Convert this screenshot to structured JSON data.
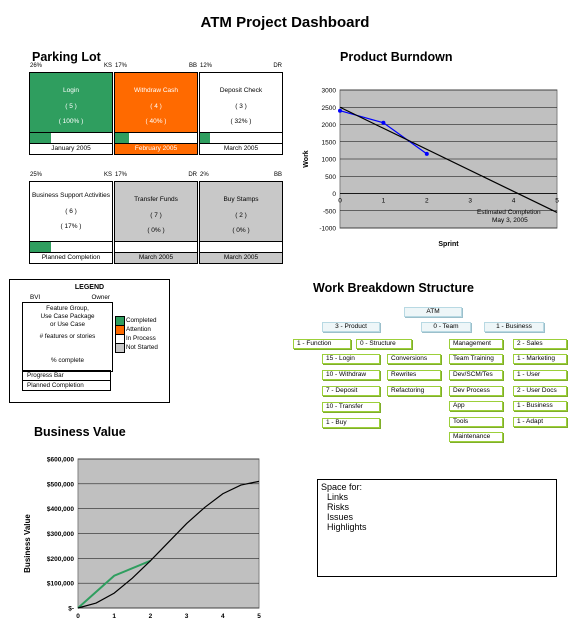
{
  "title": "ATM Project Dashboard",
  "parking_lot": {
    "heading": "Parking Lot",
    "cards": [
      {
        "pct_top": "26%",
        "owner": "KS",
        "name": "Login",
        "count": "( 5 )",
        "pct": "( 100% )",
        "foot": "January 2005",
        "progress": 0.26,
        "style": "green"
      },
      {
        "pct_top": "17%",
        "owner": "BB",
        "name": "Withdraw Cash",
        "count": "( 4 )",
        "pct": "( 40% )",
        "foot": "February 2005",
        "progress": 0.17,
        "style": "orange"
      },
      {
        "pct_top": "12%",
        "owner": "DR",
        "name": "Deposit Check",
        "count": "( 3 )",
        "pct": "( 32% )",
        "foot": "March 2005",
        "progress": 0.12,
        "style": "white"
      },
      {
        "pct_top": "25%",
        "owner": "KS",
        "name": "Business Support Activities",
        "count": "( 6 )",
        "pct": "( 17% )",
        "foot": "Planned Completion",
        "progress": 0.25,
        "style": "white"
      },
      {
        "pct_top": "17%",
        "owner": "DR",
        "name": "Transfer Funds",
        "count": "( 7 )",
        "pct": "( 0% )",
        "foot": "March 2005",
        "progress": 0.0,
        "style": "gray"
      },
      {
        "pct_top": "2%",
        "owner": "BB",
        "name": "Buy Stamps",
        "count": "( 2 )",
        "pct": "( 0% )",
        "foot": "March 2005",
        "progress": 0.0,
        "style": "gray"
      }
    ]
  },
  "legend": {
    "heading": "LEGEND",
    "bvi": "BVI",
    "owner": "Owner",
    "lines": [
      "Feature Group,",
      "Use Case Package",
      "or Use Case",
      "",
      "# features or stories",
      "",
      "",
      "% complete"
    ],
    "progress_bar": "Progress Bar",
    "planned": "Planned Completion",
    "keys": [
      {
        "label": "Completed",
        "color": "#2f9e5f"
      },
      {
        "label": "Attention",
        "color": "#ff6a00"
      },
      {
        "label": "In Process",
        "color": "#ffffff"
      },
      {
        "label": "Not Started",
        "color": "#c8c8c8"
      }
    ]
  },
  "burndown": {
    "heading": "Product Burndown",
    "annotation": [
      "Estimated Completion",
      "May 3, 2005"
    ],
    "chart_data": {
      "type": "line",
      "xlabel": "Sprint",
      "ylabel": "Work",
      "xlim": [
        0,
        5
      ],
      "ylim": [
        -1000,
        3000
      ],
      "yticks": [
        3000,
        2500,
        2000,
        1500,
        1000,
        500,
        0,
        -500,
        -1000
      ],
      "xticks": [
        0,
        1,
        2,
        3,
        4,
        5
      ],
      "series": [
        {
          "color": "#0000ff",
          "x": [
            0,
            1,
            2
          ],
          "y": [
            2400,
            2050,
            1150
          ]
        },
        {
          "color": "#000000",
          "x": [
            0,
            5
          ],
          "y": [
            2500,
            -550
          ]
        }
      ]
    }
  },
  "wbs": {
    "heading": "Work Breakdown Structure",
    "nodes": {
      "root": "ATM",
      "l1": [
        "3 - Product",
        "0 - Team",
        "1 - Business"
      ],
      "product": [
        "1 - Function",
        "0 - Structure"
      ],
      "function": [
        "15 - Login",
        "10 - Withdraw",
        "7 - Deposit",
        "10 - Transfer",
        "1 - Buy"
      ],
      "structure": [
        "Conversions",
        "Rewrites",
        "Refactoring"
      ],
      "team": [
        "Management",
        "Team Training",
        "Dev/SCM/Tes",
        "Dev Process",
        "App",
        "Tools",
        "Maintenance"
      ],
      "business": [
        "2 - Sales",
        "1 - Marketing",
        "1 - User",
        "2 - User Docs",
        "1 - Business",
        "1 - Adapt"
      ]
    }
  },
  "business_value": {
    "heading": "Business Value",
    "chart_data": {
      "type": "line",
      "xlabel": "",
      "ylabel": "Business Value",
      "xlim": [
        0,
        5
      ],
      "ylim": [
        0,
        600000
      ],
      "ytick_labels": [
        "$600,000",
        "$500,000",
        "$400,000",
        "$300,000",
        "$200,000",
        "$100,000",
        "$-"
      ],
      "xticks": [
        0,
        1,
        2,
        3,
        4,
        5
      ],
      "series": [
        {
          "color": "#2f9e5f",
          "x": [
            0,
            1,
            2
          ],
          "y": [
            0,
            130000,
            190000
          ]
        },
        {
          "color": "#000000",
          "x": [
            0,
            0.5,
            1,
            1.5,
            2,
            2.5,
            3,
            3.5,
            4,
            4.5,
            5
          ],
          "y": [
            0,
            20000,
            60000,
            120000,
            190000,
            265000,
            340000,
            405000,
            460000,
            495000,
            510000
          ]
        }
      ]
    }
  },
  "space_box": {
    "heading": "Space for:",
    "items": [
      "Links",
      "Risks",
      "Issues",
      "Highlights"
    ]
  }
}
